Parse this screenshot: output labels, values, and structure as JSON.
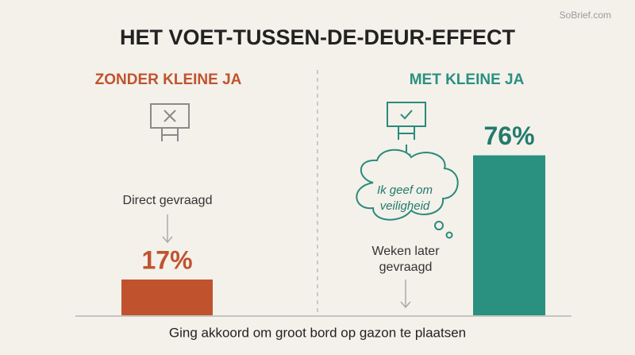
{
  "chart_data": {
    "type": "bar",
    "title": "HET VOET-TUSSEN-DE-DEUR-EFFECT",
    "categories": [
      "ZONDER KLEINE JA",
      "MET KLEINE JA"
    ],
    "values": [
      17,
      76
    ],
    "value_labels": [
      "17%",
      "76%"
    ],
    "colors": [
      "#c0532e",
      "#2a9080"
    ],
    "label_colors": [
      "#c0532e",
      "#237a6d"
    ],
    "annotations": {
      "direct": "Direct gevraagd",
      "thought": [
        "Ik geef om",
        "veiligheid"
      ],
      "later": [
        "Weken later",
        "gevraagd"
      ]
    },
    "x_label": "Ging akkoord om groot bord op gazon te plaatsen",
    "watermark": "SoBrief.com"
  }
}
